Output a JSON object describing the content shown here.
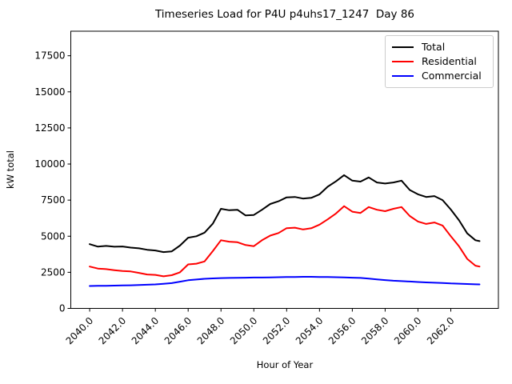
{
  "chart_data": {
    "type": "line",
    "title": "Timeseries Load for P4U p4uhs17_1247  Day 86",
    "xlabel": "Hour of Year",
    "ylabel": "kW total",
    "grid": false,
    "legend_position": "upper right",
    "xlim": [
      2038.85,
      2064.9
    ],
    "ylim": [
      0,
      19200
    ],
    "x_ticks": {
      "values": [
        2040,
        2042,
        2044,
        2046,
        2048,
        2050,
        2052,
        2054,
        2056,
        2058,
        2060,
        2062
      ],
      "labels": [
        "2040.0",
        "2042.0",
        "2044.0",
        "2046.0",
        "2048.0",
        "2050.0",
        "2052.0",
        "2054.0",
        "2056.0",
        "2058.0",
        "2060.0",
        "2062.0"
      ]
    },
    "y_ticks": {
      "values": [
        0,
        2500,
        5000,
        7500,
        10000,
        12500,
        15000,
        17500
      ],
      "labels": [
        "0",
        "2500",
        "5000",
        "7500",
        "10000",
        "12500",
        "15000",
        "17500"
      ]
    },
    "x": [
      2040.0,
      2040.5,
      2041.0,
      2041.5,
      2042.0,
      2042.5,
      2043.0,
      2043.5,
      2044.0,
      2044.5,
      2045.0,
      2045.5,
      2046.0,
      2046.5,
      2047.0,
      2047.5,
      2048.0,
      2048.5,
      2049.0,
      2049.5,
      2050.0,
      2050.5,
      2051.0,
      2051.5,
      2052.0,
      2052.5,
      2053.0,
      2053.5,
      2054.0,
      2054.5,
      2055.0,
      2055.5,
      2056.0,
      2056.5,
      2057.0,
      2057.5,
      2058.0,
      2058.5,
      2059.0,
      2059.5,
      2060.0,
      2060.5,
      2061.0,
      2061.5,
      2062.0,
      2062.5,
      2063.0,
      2063.5,
      2063.75
    ],
    "series": [
      {
        "name": "Total",
        "color": "#000000",
        "values": [
          4450,
          4280,
          4330,
          4270,
          4290,
          4210,
          4160,
          4060,
          4010,
          3900,
          3950,
          4350,
          4900,
          5000,
          5250,
          5870,
          6900,
          6800,
          6830,
          6440,
          6470,
          6830,
          7230,
          7420,
          7690,
          7720,
          7610,
          7660,
          7900,
          8430,
          8800,
          9230,
          8850,
          8780,
          9070,
          8720,
          8650,
          8720,
          8850,
          8200,
          7900,
          7720,
          7780,
          7500,
          6850,
          6100,
          5200,
          4720,
          4660
        ]
      },
      {
        "name": "Residential",
        "color": "#ff0000",
        "values": [
          2900,
          2760,
          2720,
          2650,
          2590,
          2560,
          2460,
          2350,
          2320,
          2220,
          2300,
          2500,
          3050,
          3100,
          3250,
          3970,
          4720,
          4620,
          4580,
          4390,
          4310,
          4720,
          5040,
          5220,
          5560,
          5590,
          5470,
          5550,
          5800,
          6170,
          6570,
          7080,
          6700,
          6610,
          7020,
          6830,
          6730,
          6900,
          7020,
          6400,
          6020,
          5850,
          5950,
          5740,
          5000,
          4300,
          3430,
          2960,
          2900
        ]
      },
      {
        "name": "Commercial",
        "color": "#0000ff",
        "values": [
          1550,
          1560,
          1570,
          1580,
          1590,
          1600,
          1620,
          1640,
          1660,
          1700,
          1750,
          1850,
          1950,
          2000,
          2050,
          2080,
          2100,
          2110,
          2120,
          2130,
          2140,
          2140,
          2150,
          2160,
          2170,
          2180,
          2190,
          2190,
          2180,
          2170,
          2160,
          2150,
          2130,
          2110,
          2060,
          2010,
          1960,
          1920,
          1890,
          1860,
          1830,
          1800,
          1780,
          1760,
          1730,
          1710,
          1690,
          1670,
          1660
        ]
      }
    ]
  }
}
